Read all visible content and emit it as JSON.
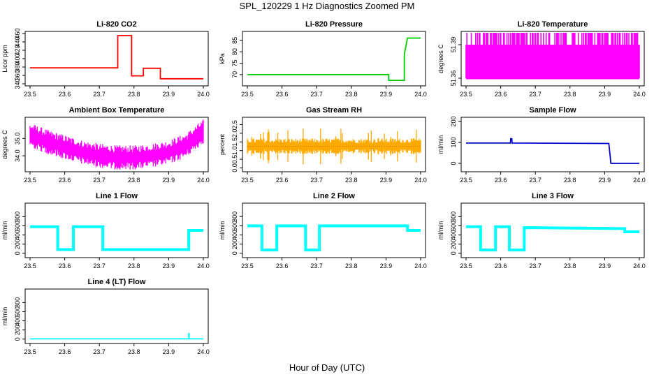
{
  "figure": {
    "title": "SPL_120229  1 Hz Diagnostics Zoomed PM",
    "xlabel": "Hour of Day (UTC)"
  },
  "chart_data": [
    {
      "type": "line",
      "title": "Li-820 CO2",
      "ylabel": "Licor ppm",
      "color": "#ff0000",
      "xlim": [
        23.5,
        24.0
      ],
      "ylim": [
        340,
        460
      ],
      "xticks": [
        "23.5",
        "23.6",
        "23.7",
        "23.8",
        "23.9",
        "24.0"
      ],
      "yticks": [
        "340",
        "360",
        "380",
        "400",
        "420",
        "440",
        "460"
      ],
      "series": [
        {
          "x": [
            23.5,
            23.753,
            23.753,
            23.793,
            23.793,
            23.827,
            23.827,
            23.876,
            23.876,
            24.0
          ],
          "values": [
            378,
            378,
            455,
            455,
            359,
            359,
            377,
            377,
            352,
            352
          ]
        }
      ]
    },
    {
      "type": "line",
      "title": "Li-820 Pressure",
      "ylabel": "kPa",
      "color": "#00cc00",
      "xlim": [
        23.5,
        24.0
      ],
      "ylim": [
        66,
        88
      ],
      "xticks": [
        "23.5",
        "23.6",
        "23.7",
        "23.8",
        "23.9",
        "24.0"
      ],
      "yticks": [
        "70",
        "75",
        "80",
        "85"
      ],
      "series": [
        {
          "x": [
            23.5,
            23.908,
            23.908,
            23.953,
            23.953,
            23.962,
            23.962,
            24.0
          ],
          "values": [
            70,
            70,
            67.5,
            67.5,
            79,
            86,
            86,
            86
          ]
        }
      ]
    },
    {
      "type": "line",
      "title": "Li-820 Temperature",
      "ylabel": "degrees C",
      "color": "#ff00ff",
      "xlim": [
        23.5,
        24.0
      ],
      "ylim": [
        51.355,
        51.4
      ],
      "xticks": [
        "23.5",
        "23.6",
        "23.7",
        "23.8",
        "23.9",
        "24.0"
      ],
      "yticks": [
        "51.36",
        "51.39"
      ],
      "series": [
        {
          "x": [
            23.5,
            24.0
          ],
          "values": [
            51.36,
            51.39
          ]
        }
      ]
    },
    {
      "type": "line",
      "title": "Ambient Box Temperature",
      "ylabel": "degrees C",
      "color": "#ff00ff",
      "xlim": [
        23.5,
        24.0
      ],
      "ylim": [
        33.2,
        36.1
      ],
      "xticks": [
        "23.5",
        "23.6",
        "23.7",
        "23.8",
        "23.9",
        "24.0"
      ],
      "yticks": [
        "34.0",
        "35.0"
      ],
      "series": [
        {
          "x": [
            23.5,
            23.55,
            23.6,
            23.65,
            23.7,
            23.75,
            23.8,
            23.85,
            23.9,
            23.95,
            24.0
          ],
          "values": [
            35.2,
            34.8,
            34.5,
            34.2,
            34.0,
            33.9,
            33.9,
            34.0,
            34.2,
            34.6,
            35.4
          ]
        }
      ]
    },
    {
      "type": "line",
      "title": "Gas Stream RH",
      "ylabel": "percent",
      "color": "#ffaa00",
      "xlim": [
        23.5,
        24.0
      ],
      "ylim": [
        -0.1,
        2.8
      ],
      "xticks": [
        "23.5",
        "23.6",
        "23.7",
        "23.8",
        "23.9",
        "24.0"
      ],
      "yticks": [
        "0.0",
        "0.5",
        "1.0",
        "1.5",
        "2.0",
        "2.5"
      ],
      "series": [
        {
          "x": [
            23.5,
            24.0
          ],
          "values": [
            1.25,
            1.25
          ]
        }
      ]
    },
    {
      "type": "line",
      "title": "Sample Flow",
      "ylabel": "ml/min",
      "color": "#0000cc",
      "xlim": [
        23.5,
        24.0
      ],
      "ylim": [
        -30,
        210
      ],
      "xticks": [
        "23.5",
        "23.6",
        "23.7",
        "23.8",
        "23.9",
        "24.0"
      ],
      "yticks": [
        "0",
        "100",
        "200"
      ],
      "series": [
        {
          "x": [
            23.5,
            23.628,
            23.629,
            23.632,
            23.633,
            23.912,
            23.918,
            24.0
          ],
          "values": [
            97,
            97,
            118,
            118,
            97,
            95,
            0,
            0
          ]
        }
      ]
    },
    {
      "type": "line",
      "title": "Line 1 Flow",
      "ylabel": "ml/min",
      "color": "#00ffff",
      "xlim": [
        23.5,
        24.0
      ],
      "ylim": [
        -50,
        1050
      ],
      "xticks": [
        "23.5",
        "23.6",
        "23.7",
        "23.8",
        "23.9",
        "24.0"
      ],
      "yticks": [
        "0",
        "200",
        "400",
        "600",
        "800"
      ],
      "series": [
        {
          "x": [
            23.5,
            23.58,
            23.58,
            23.625,
            23.625,
            23.71,
            23.71,
            23.958,
            23.958,
            24.0
          ],
          "values": [
            580,
            580,
            80,
            80,
            580,
            580,
            80,
            80,
            500,
            500
          ]
        }
      ]
    },
    {
      "type": "line",
      "title": "Line 2 Flow",
      "ylabel": "ml/min",
      "color": "#00ffff",
      "xlim": [
        23.5,
        24.0
      ],
      "ylim": [
        -50,
        1050
      ],
      "xticks": [
        "23.5",
        "23.6",
        "23.7",
        "23.8",
        "23.9",
        "24.0"
      ],
      "yticks": [
        "0",
        "200",
        "400",
        "600",
        "800"
      ],
      "series": [
        {
          "x": [
            23.5,
            23.542,
            23.542,
            23.585,
            23.585,
            23.668,
            23.668,
            23.708,
            23.708,
            23.962,
            23.962,
            24.0
          ],
          "values": [
            600,
            600,
            70,
            70,
            600,
            600,
            70,
            70,
            600,
            600,
            500,
            500
          ]
        }
      ]
    },
    {
      "type": "line",
      "title": "Line 3 Flow",
      "ylabel": "ml/min",
      "color": "#00ffff",
      "xlim": [
        23.5,
        24.0
      ],
      "ylim": [
        -50,
        1050
      ],
      "xticks": [
        "23.5",
        "23.6",
        "23.7",
        "23.8",
        "23.9",
        "24.0"
      ],
      "yticks": [
        "0",
        "200",
        "400",
        "600",
        "800"
      ],
      "series": [
        {
          "x": [
            23.5,
            23.542,
            23.542,
            23.585,
            23.585,
            23.625,
            23.625,
            23.668,
            23.668,
            23.958,
            23.958,
            24.0
          ],
          "values": [
            580,
            580,
            70,
            70,
            580,
            580,
            70,
            70,
            560,
            540,
            470,
            470
          ]
        }
      ]
    },
    {
      "type": "line",
      "title": "Line 4 (LT) Flow",
      "ylabel": "ml/min",
      "color": "#00ffff",
      "xlim": [
        23.5,
        24.0
      ],
      "ylim": [
        -50,
        1050
      ],
      "xticks": [
        "23.5",
        "23.6",
        "23.7",
        "23.8",
        "23.9",
        "24.0"
      ],
      "yticks": [
        "0",
        "200",
        "400",
        "600",
        "800"
      ],
      "series": [
        {
          "x": [
            23.5,
            23.958,
            23.958,
            23.959,
            23.959,
            24.0
          ],
          "values": [
            5,
            5,
            120,
            120,
            5,
            5
          ]
        }
      ]
    }
  ]
}
